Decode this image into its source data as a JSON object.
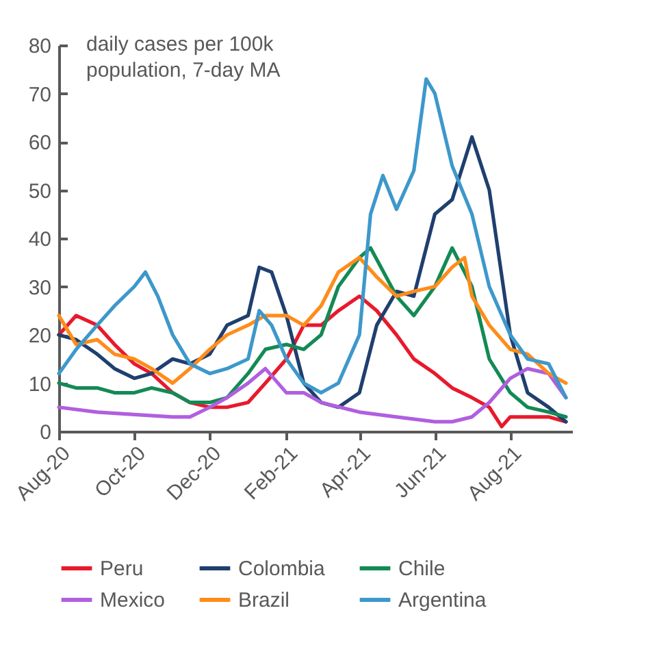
{
  "chart_data": {
    "type": "line",
    "annotations": [
      "daily cases per 100k population, 7-day MA"
    ],
    "xlim": [
      "2020-08-01",
      "2021-09-20"
    ],
    "xticks": [
      {
        "value": "2020-08-01",
        "label": "Aug-20"
      },
      {
        "value": "2020-10-01",
        "label": "Oct-20"
      },
      {
        "value": "2020-12-01",
        "label": "Dec-20"
      },
      {
        "value": "2021-02-01",
        "label": "Feb-21"
      },
      {
        "value": "2021-04-01",
        "label": "Apr-21"
      },
      {
        "value": "2021-06-01",
        "label": "Jun-21"
      },
      {
        "value": "2021-08-01",
        "label": "Aug-21"
      }
    ],
    "ylim": [
      0,
      80
    ],
    "yticks": [
      0,
      10,
      20,
      30,
      40,
      50,
      60,
      70,
      80
    ],
    "grid": false,
    "legend": "bottom",
    "line_style": "solid",
    "marker": "none",
    "series": [
      {
        "name": "Peru",
        "color": "#e8192c",
        "x": [
          "2020-08-01",
          "2020-08-15",
          "2020-09-01",
          "2020-09-15",
          "2020-10-01",
          "2020-10-15",
          "2020-11-01",
          "2020-11-15",
          "2020-12-01",
          "2020-12-15",
          "2021-01-01",
          "2021-01-15",
          "2021-02-01",
          "2021-02-15",
          "2021-03-01",
          "2021-03-15",
          "2021-04-01",
          "2021-04-15",
          "2021-05-01",
          "2021-05-15",
          "2021-06-01",
          "2021-06-15",
          "2021-07-01",
          "2021-07-15",
          "2021-07-25",
          "2021-08-01",
          "2021-08-15",
          "2021-09-01",
          "2021-09-15"
        ],
        "values": [
          20,
          24,
          22,
          18,
          14,
          12,
          8,
          6,
          5,
          5,
          6,
          10,
          15,
          22,
          22,
          25,
          28,
          25,
          20,
          15,
          12,
          9,
          7,
          5,
          1,
          3,
          3,
          3,
          2
        ]
      },
      {
        "name": "Colombia",
        "color": "#1f3f6e",
        "x": [
          "2020-08-01",
          "2020-08-15",
          "2020-09-01",
          "2020-09-15",
          "2020-10-01",
          "2020-10-15",
          "2020-11-01",
          "2020-11-15",
          "2020-12-01",
          "2020-12-15",
          "2021-01-01",
          "2021-01-10",
          "2021-01-20",
          "2021-02-01",
          "2021-02-15",
          "2021-03-01",
          "2021-03-15",
          "2021-04-01",
          "2021-04-15",
          "2021-05-01",
          "2021-05-15",
          "2021-06-01",
          "2021-06-15",
          "2021-07-01",
          "2021-07-15",
          "2021-08-01",
          "2021-08-15",
          "2021-09-01",
          "2021-09-15"
        ],
        "values": [
          20,
          19,
          16,
          13,
          11,
          12,
          15,
          14,
          16,
          22,
          24,
          34,
          33,
          24,
          10,
          6,
          5,
          8,
          22,
          29,
          28,
          45,
          48,
          61,
          50,
          20,
          8,
          5,
          2
        ]
      },
      {
        "name": "Chile",
        "color": "#138a55",
        "x": [
          "2020-08-01",
          "2020-08-15",
          "2020-09-01",
          "2020-09-15",
          "2020-10-01",
          "2020-10-15",
          "2020-11-01",
          "2020-11-15",
          "2020-12-01",
          "2020-12-15",
          "2021-01-01",
          "2021-01-15",
          "2021-02-01",
          "2021-02-15",
          "2021-03-01",
          "2021-03-15",
          "2021-04-01",
          "2021-04-10",
          "2021-05-01",
          "2021-05-15",
          "2021-06-01",
          "2021-06-15",
          "2021-07-01",
          "2021-07-15",
          "2021-08-01",
          "2021-08-15",
          "2021-09-01",
          "2021-09-15"
        ],
        "values": [
          10,
          9,
          9,
          8,
          8,
          9,
          8,
          6,
          6,
          7,
          12,
          17,
          18,
          17,
          20,
          30,
          36,
          38,
          28,
          24,
          30,
          38,
          30,
          15,
          8,
          5,
          4,
          3
        ]
      },
      {
        "name": "Mexico",
        "color": "#b05fdf",
        "x": [
          "2020-08-01",
          "2020-09-01",
          "2020-10-01",
          "2020-11-01",
          "2020-11-15",
          "2020-12-01",
          "2020-12-15",
          "2021-01-01",
          "2021-01-15",
          "2021-02-01",
          "2021-02-15",
          "2021-03-01",
          "2021-04-01",
          "2021-05-01",
          "2021-06-01",
          "2021-06-15",
          "2021-07-01",
          "2021-07-15",
          "2021-08-01",
          "2021-08-15",
          "2021-09-01",
          "2021-09-15"
        ],
        "values": [
          5,
          4,
          3.5,
          3,
          3,
          5,
          7,
          10,
          13,
          8,
          8,
          6,
          4,
          3,
          2,
          2,
          3,
          6,
          11,
          13,
          12,
          7
        ]
      },
      {
        "name": "Brazil",
        "color": "#ff8c1a",
        "x": [
          "2020-08-01",
          "2020-08-15",
          "2020-09-01",
          "2020-09-15",
          "2020-10-01",
          "2020-10-15",
          "2020-11-01",
          "2020-11-15",
          "2020-12-01",
          "2020-12-15",
          "2021-01-01",
          "2021-01-15",
          "2021-02-01",
          "2021-02-15",
          "2021-03-01",
          "2021-03-15",
          "2021-04-01",
          "2021-04-15",
          "2021-05-01",
          "2021-05-15",
          "2021-06-01",
          "2021-06-15",
          "2021-06-25",
          "2021-07-01",
          "2021-07-15",
          "2021-08-01",
          "2021-08-15",
          "2021-09-01",
          "2021-09-15"
        ],
        "values": [
          24,
          18,
          19,
          16,
          15,
          13,
          10,
          13,
          17,
          20,
          22,
          24,
          24,
          22,
          26,
          33,
          36,
          32,
          28,
          29,
          30,
          34,
          36,
          28,
          22,
          17,
          16,
          12,
          10
        ]
      },
      {
        "name": "Argentina",
        "color": "#3d98cb",
        "x": [
          "2020-08-01",
          "2020-08-15",
          "2020-09-01",
          "2020-09-15",
          "2020-10-01",
          "2020-10-10",
          "2020-10-20",
          "2020-11-01",
          "2020-11-15",
          "2020-12-01",
          "2020-12-15",
          "2021-01-01",
          "2021-01-10",
          "2021-01-20",
          "2021-02-01",
          "2021-02-15",
          "2021-03-01",
          "2021-03-15",
          "2021-04-01",
          "2021-04-10",
          "2021-04-20",
          "2021-05-01",
          "2021-05-15",
          "2021-05-25",
          "2021-06-01",
          "2021-06-15",
          "2021-07-01",
          "2021-07-15",
          "2021-08-01",
          "2021-08-15",
          "2021-09-01",
          "2021-09-15"
        ],
        "values": [
          12,
          17,
          22,
          26,
          30,
          33,
          28,
          20,
          14,
          12,
          13,
          15,
          25,
          22,
          15,
          10,
          8,
          10,
          20,
          45,
          53,
          46,
          54,
          73,
          70,
          55,
          45,
          30,
          20,
          15,
          14,
          7
        ]
      }
    ]
  }
}
